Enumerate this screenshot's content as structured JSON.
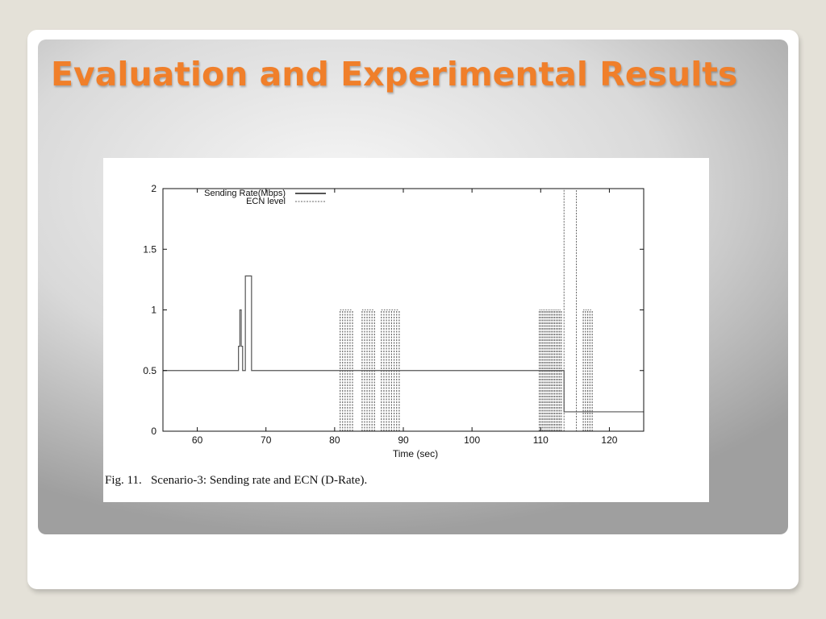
{
  "slide": {
    "title": "Evaluation and Experimental Results"
  },
  "figure": {
    "caption": "Fig. 11.   Scenario-3: Sending rate and ECN (D-Rate)."
  },
  "chart_data": {
    "type": "line",
    "xlabel": "Time (sec)",
    "ylabel": "",
    "xlim": [
      55,
      125
    ],
    "ylim": [
      0,
      2
    ],
    "xticks": [
      60,
      70,
      80,
      90,
      100,
      110,
      120
    ],
    "yticks": [
      0,
      0.5,
      1,
      1.5,
      2
    ],
    "ytick_labels": [
      "0",
      "0.5",
      "1",
      "1.5",
      "2"
    ],
    "legend_position": "top-left",
    "series": [
      {
        "name": "Sending Rate(Mbps)",
        "style": "solid",
        "color": "#555555",
        "points": [
          [
            55,
            0.5
          ],
          [
            66,
            0.5
          ],
          [
            66,
            0.7
          ],
          [
            66.2,
            0.7
          ],
          [
            66.2,
            1.0
          ],
          [
            66.4,
            1.0
          ],
          [
            66.4,
            0.7
          ],
          [
            66.6,
            0.7
          ],
          [
            66.6,
            0.5
          ],
          [
            67,
            0.5
          ],
          [
            67,
            1.28
          ],
          [
            67.9,
            1.28
          ],
          [
            67.9,
            0.5
          ],
          [
            113.4,
            0.5
          ],
          [
            113.4,
            0.16
          ],
          [
            125,
            0.16
          ]
        ]
      },
      {
        "name": "ECN level",
        "style": "dashed",
        "color": "#666666",
        "points": [
          [
            55,
            0
          ],
          [
            113.4,
            0
          ],
          [
            113.4,
            2
          ],
          [
            115.2,
            2
          ],
          [
            115.2,
            0
          ],
          [
            125,
            0
          ]
        ],
        "pulse_value": 1,
        "pulse_groups": [
          {
            "start": 80.8,
            "end": 82.6,
            "count": 6
          },
          {
            "start": 84.0,
            "end": 85.8,
            "count": 6
          },
          {
            "start": 86.8,
            "end": 89.4,
            "count": 8
          },
          {
            "start": 109.8,
            "end": 113.0,
            "count": 14
          },
          {
            "start": 116.2,
            "end": 117.5,
            "count": 5
          }
        ]
      }
    ]
  }
}
